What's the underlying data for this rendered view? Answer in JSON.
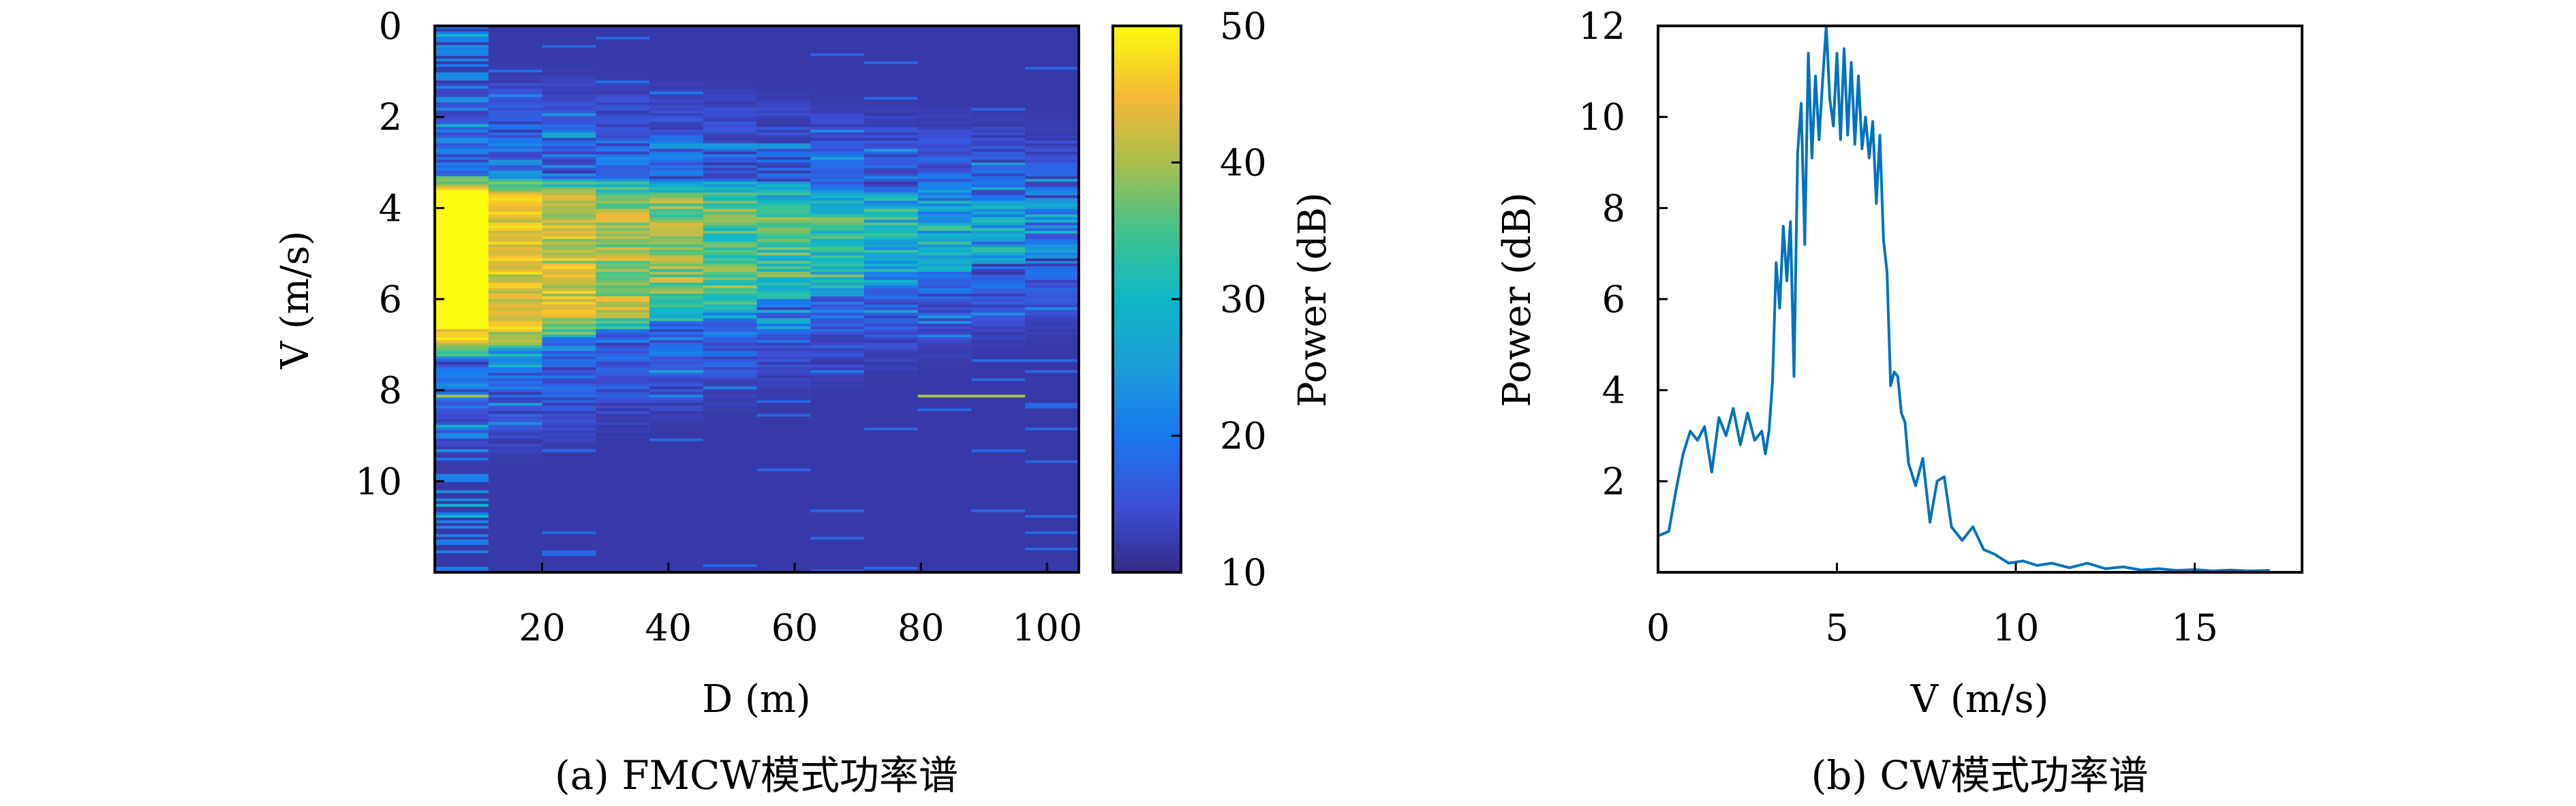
{
  "captions": {
    "left": "(a) FMCW模式功率谱",
    "right": "(b) CW模式功率谱"
  },
  "chart_data": [
    {
      "type": "heatmap",
      "xlabel": "D (m)",
      "ylabel": "V (m/s)",
      "colorbar_label": "Power (dB)",
      "x_ticks": [
        "20",
        "40",
        "60",
        "80",
        "100"
      ],
      "y_ticks": [
        "0",
        "2",
        "4",
        "6",
        "8",
        "10"
      ],
      "colorbar_ticks": [
        "50",
        "40",
        "30",
        "20",
        "10"
      ],
      "xlim": [
        3,
        105
      ],
      "ylim": [
        0,
        12
      ],
      "clim": [
        10,
        50
      ],
      "colormap": "parula",
      "range_bins_m": [
        3,
        11.5,
        20,
        28.5,
        37,
        45.5,
        54,
        62.5,
        71,
        79.5,
        88,
        96.5,
        105
      ],
      "description_of_values": "power concentrated at V 3.3–7.2 m/s for near ranges, narrowing to V 3.6–5.2 m/s at far ranges; weak line near V 8.1 m/s"
    },
    {
      "type": "line",
      "xlabel": "V (m/s)",
      "ylabel": "Power (dB)",
      "x_ticks": [
        "0",
        "5",
        "10",
        "15"
      ],
      "y_ticks": [
        "2",
        "4",
        "6",
        "8",
        "10",
        "12"
      ],
      "xlim": [
        0,
        18
      ],
      "ylim": [
        0,
        12
      ],
      "color": "#0072bd",
      "x": [
        0,
        0.3,
        0.5,
        0.7,
        0.9,
        1.1,
        1.3,
        1.5,
        1.7,
        1.9,
        2.1,
        2.3,
        2.5,
        2.7,
        2.9,
        3.0,
        3.1,
        3.2,
        3.3,
        3.4,
        3.5,
        3.6,
        3.7,
        3.8,
        3.9,
        4.0,
        4.1,
        4.2,
        4.3,
        4.4,
        4.5,
        4.6,
        4.7,
        4.8,
        4.9,
        5.0,
        5.1,
        5.2,
        5.3,
        5.4,
        5.5,
        5.6,
        5.7,
        5.8,
        5.9,
        6.0,
        6.1,
        6.2,
        6.3,
        6.4,
        6.5,
        6.6,
        6.7,
        6.8,
        6.9,
        7.0,
        7.2,
        7.4,
        7.6,
        7.8,
        8.0,
        8.2,
        8.5,
        8.8,
        9.1,
        9.4,
        9.8,
        10.2,
        10.6,
        11.0,
        11.5,
        12.0,
        12.5,
        13.0,
        13.5,
        14.0,
        14.5,
        15.0,
        15.5,
        16.0,
        16.5,
        17.1
      ],
      "y": [
        0.8,
        0.9,
        1.8,
        2.6,
        3.1,
        2.9,
        3.2,
        2.2,
        3.4,
        3.0,
        3.6,
        2.8,
        3.5,
        2.9,
        3.1,
        2.6,
        3.1,
        4.2,
        6.8,
        5.8,
        7.6,
        6.4,
        7.7,
        4.3,
        9.2,
        10.3,
        7.2,
        11.4,
        9.1,
        10.9,
        9.5,
        10.8,
        12.0,
        10.4,
        9.8,
        11.4,
        9.5,
        11.5,
        9.6,
        11.2,
        9.4,
        10.9,
        9.3,
        10.0,
        9.1,
        9.9,
        8.1,
        9.6,
        7.3,
        6.6,
        4.1,
        4.4,
        4.3,
        3.5,
        3.3,
        2.4,
        1.9,
        2.5,
        1.1,
        2.0,
        2.1,
        1.0,
        0.7,
        1.0,
        0.5,
        0.4,
        0.2,
        0.25,
        0.15,
        0.2,
        0.1,
        0.2,
        0.08,
        0.12,
        0.05,
        0.08,
        0.04,
        0.06,
        0.03,
        0.05,
        0.03,
        0.04
      ]
    }
  ]
}
